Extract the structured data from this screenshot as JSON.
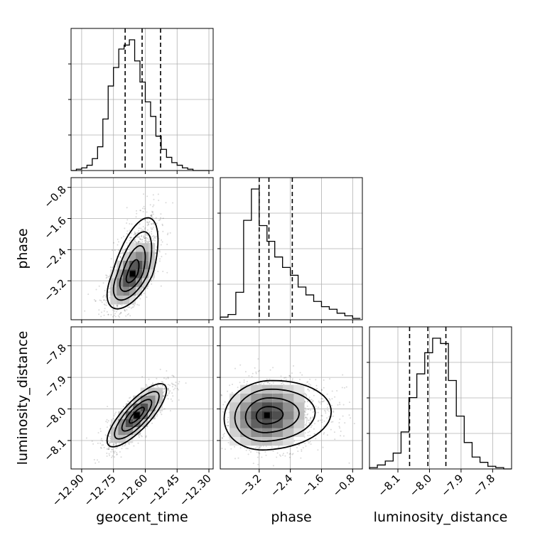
{
  "chart_data": {
    "type": "corner",
    "parameters": [
      "geocent_time",
      "phase",
      "luminosity_distance"
    ],
    "axis_labels": {
      "x": [
        "geocent_time",
        "phase",
        "luminosity_distance"
      ],
      "y": [
        "",
        "phase",
        "luminosity_distance"
      ]
    },
    "ranges": {
      "geocent_time": [
        -12.95,
        -12.28
      ],
      "phase": [
        -4.2,
        -0.55
      ],
      "luminosity_distance": [
        -8.19,
        -7.74
      ]
    },
    "ticks": {
      "geocent_time": {
        "values": [
          -12.9,
          -12.75,
          -12.6,
          -12.45,
          -12.3
        ],
        "labels": [
          "−12.90",
          "−12.75",
          "−12.60",
          "−12.45",
          "−12.30"
        ]
      },
      "phase": {
        "values": [
          -3.2,
          -2.4,
          -1.6,
          -0.8
        ],
        "labels": [
          "−3.2",
          "−2.4",
          "−1.6",
          "−0.8"
        ]
      },
      "luminosity_distance": {
        "values": [
          -8.1,
          -8.0,
          -7.9,
          -7.8
        ],
        "labels": [
          "−8.1",
          "−8.0",
          "−7.9",
          "−7.8"
        ]
      }
    },
    "quantiles": {
      "geocent_time": [
        -12.695,
        -12.615,
        -12.528
      ],
      "phase": [
        -3.2,
        -2.95,
        -2.35
      ],
      "luminosity_distance": [
        -8.063,
        -8.005,
        -7.948
      ]
    },
    "histograms": {
      "geocent_time": {
        "bins": [
          -12.95,
          -12.925,
          -12.9,
          -12.875,
          -12.85,
          -12.825,
          -12.8,
          -12.775,
          -12.75,
          -12.725,
          -12.7,
          -12.675,
          -12.65,
          -12.625,
          -12.6,
          -12.575,
          -12.55,
          -12.525,
          -12.5,
          -12.475,
          -12.45,
          -12.425,
          -12.4,
          -12.375,
          -12.35,
          -12.325,
          -12.3
        ],
        "counts": [
          0,
          1,
          2,
          4,
          9,
          18,
          39,
          64,
          78,
          92,
          95,
          99,
          83,
          67,
          52,
          41,
          26,
          16,
          10,
          6,
          4,
          2,
          1,
          0,
          0,
          0
        ]
      },
      "phase": {
        "bins": [
          -4.2,
          -4.0,
          -3.8,
          -3.6,
          -3.4,
          -3.2,
          -3.0,
          -2.8,
          -2.6,
          -2.4,
          -2.2,
          -2.0,
          -1.8,
          -1.6,
          -1.4,
          -1.2,
          -1.0,
          -0.8,
          -0.6
        ],
        "counts": [
          2,
          4,
          21,
          76,
          100,
          72,
          60,
          48,
          40,
          34,
          25,
          19,
          14,
          10,
          8,
          5,
          3,
          1
        ]
      },
      "luminosity_distance": {
        "bins": [
          -8.19,
          -8.165,
          -8.14,
          -8.115,
          -8.09,
          -8.065,
          -8.04,
          -8.015,
          -7.99,
          -7.965,
          -7.94,
          -7.915,
          -7.89,
          -7.865,
          -7.84,
          -7.815,
          -7.79,
          -7.765,
          -7.74
        ],
        "counts": [
          1,
          3,
          6,
          12,
          28,
          54,
          72,
          88,
          99,
          95,
          67,
          40,
          20,
          9,
          5,
          2,
          1,
          0
        ]
      }
    },
    "joint": [
      {
        "x": "geocent_time",
        "y": "phase",
        "center": [
          -12.66,
          -3.02
        ],
        "sigma": [
          0.06,
          0.45
        ],
        "rho": 0.6,
        "skew": "y-upward"
      },
      {
        "x": "geocent_time",
        "y": "luminosity_distance",
        "center": [
          -12.64,
          -8.02
        ],
        "sigma": [
          0.07,
          0.05
        ],
        "rho": 0.8
      },
      {
        "x": "phase",
        "y": "luminosity_distance",
        "center": [
          -3.0,
          -8.02
        ],
        "sigma": [
          0.55,
          0.055
        ],
        "rho": 0.1,
        "skew": "x-rightward"
      }
    ],
    "contour_levels": [
      "0.5",
      "1.0",
      "1.5",
      "2.0"
    ],
    "grid": true
  }
}
